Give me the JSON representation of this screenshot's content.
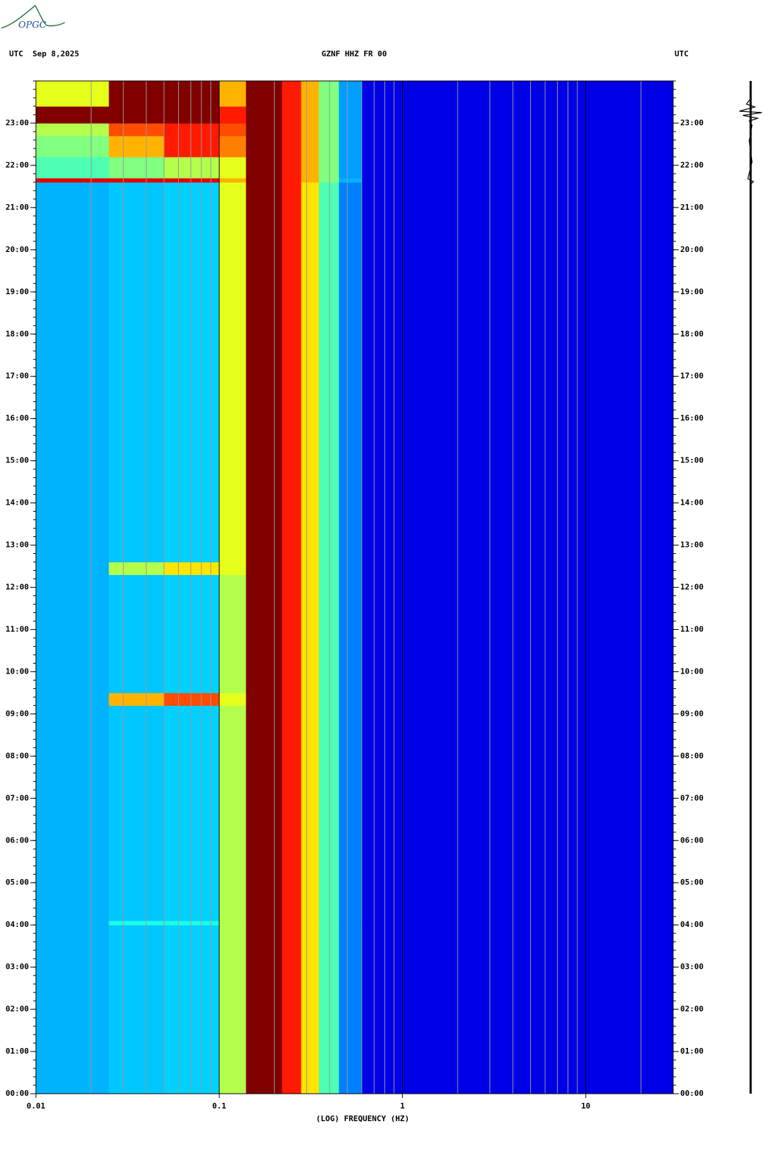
{
  "logo": "OPGC",
  "chart_data": {
    "type": "heatmap",
    "title": "GZNF HHZ FR 00",
    "left_label": "UTC  Sep 8,2025",
    "right_label": "UTC",
    "xlabel": "(LOG) FREQUENCY (HZ)",
    "log_x": true,
    "xlim": [
      0.01,
      30
    ],
    "xticks": [
      0.01,
      0.1,
      1,
      10
    ],
    "ylim": [
      0,
      24
    ],
    "yticks": [
      {
        "value": 0,
        "label": "00:00"
      },
      {
        "value": 1,
        "label": "01:00"
      },
      {
        "value": 2,
        "label": "02:00"
      },
      {
        "value": 3,
        "label": "03:00"
      },
      {
        "value": 4,
        "label": "04:00"
      },
      {
        "value": 5,
        "label": "05:00"
      },
      {
        "value": 6,
        "label": "06:00"
      },
      {
        "value": 7,
        "label": "07:00"
      },
      {
        "value": 8,
        "label": "08:00"
      },
      {
        "value": 9,
        "label": "09:00"
      },
      {
        "value": 10,
        "label": "10:00"
      },
      {
        "value": 11,
        "label": "11:00"
      },
      {
        "value": 12,
        "label": "12:00"
      },
      {
        "value": 13,
        "label": "13:00"
      },
      {
        "value": 14,
        "label": "14:00"
      },
      {
        "value": 15,
        "label": "15:00"
      },
      {
        "value": 16,
        "label": "16:00"
      },
      {
        "value": 17,
        "label": "17:00"
      },
      {
        "value": 18,
        "label": "18:00"
      },
      {
        "value": 19,
        "label": "19:00"
      },
      {
        "value": 20,
        "label": "20:00"
      },
      {
        "value": 21,
        "label": "21:00"
      },
      {
        "value": 22,
        "label": "22:00"
      },
      {
        "value": 23,
        "label": "23:00"
      }
    ],
    "x_bins": [
      0.01,
      0.025,
      0.05,
      0.1,
      0.14,
      0.22,
      0.28,
      0.35,
      0.45,
      0.6,
      30
    ],
    "y_bins": [
      0,
      4,
      4.1,
      9.2,
      9.5,
      12.3,
      12.6,
      21.6,
      21.7,
      22.2,
      22.7,
      23,
      23.4,
      24
    ],
    "z": [
      [
        0.3,
        0.32,
        0.33,
        0.55,
        1,
        0.85,
        0.65,
        0.45,
        0.25,
        0.1
      ],
      [
        0.3,
        0.4,
        0.4,
        0.55,
        1,
        0.85,
        0.65,
        0.45,
        0.25,
        0.1
      ],
      [
        0.3,
        0.32,
        0.33,
        0.55,
        1,
        0.85,
        0.65,
        0.45,
        0.25,
        0.1
      ],
      [
        0.3,
        0.7,
        0.8,
        0.6,
        1,
        0.85,
        0.65,
        0.45,
        0.25,
        0.1
      ],
      [
        0.3,
        0.32,
        0.33,
        0.55,
        1,
        0.85,
        0.65,
        0.45,
        0.25,
        0.1
      ],
      [
        0.3,
        0.55,
        0.65,
        0.6,
        1,
        0.85,
        0.65,
        0.45,
        0.25,
        0.1
      ],
      [
        0.3,
        0.32,
        0.33,
        0.6,
        1,
        0.85,
        0.65,
        0.45,
        0.25,
        0.1
      ],
      [
        0.9,
        0.9,
        0.9,
        0.7,
        1,
        0.85,
        0.7,
        0.5,
        0.3,
        0.1
      ],
      [
        0.45,
        0.5,
        0.55,
        0.6,
        1,
        0.85,
        0.7,
        0.5,
        0.28,
        0.1
      ],
      [
        0.5,
        0.7,
        0.85,
        0.75,
        1,
        0.85,
        0.7,
        0.5,
        0.28,
        0.1
      ],
      [
        0.55,
        0.8,
        0.85,
        0.8,
        1,
        0.85,
        0.7,
        0.5,
        0.28,
        0.1
      ],
      [
        1,
        1,
        1,
        0.85,
        1,
        0.85,
        0.7,
        0.5,
        0.28,
        0.1
      ],
      [
        0.6,
        1,
        1,
        0.7,
        1,
        0.85,
        0.7,
        0.5,
        0.28,
        0.1
      ]
    ]
  }
}
